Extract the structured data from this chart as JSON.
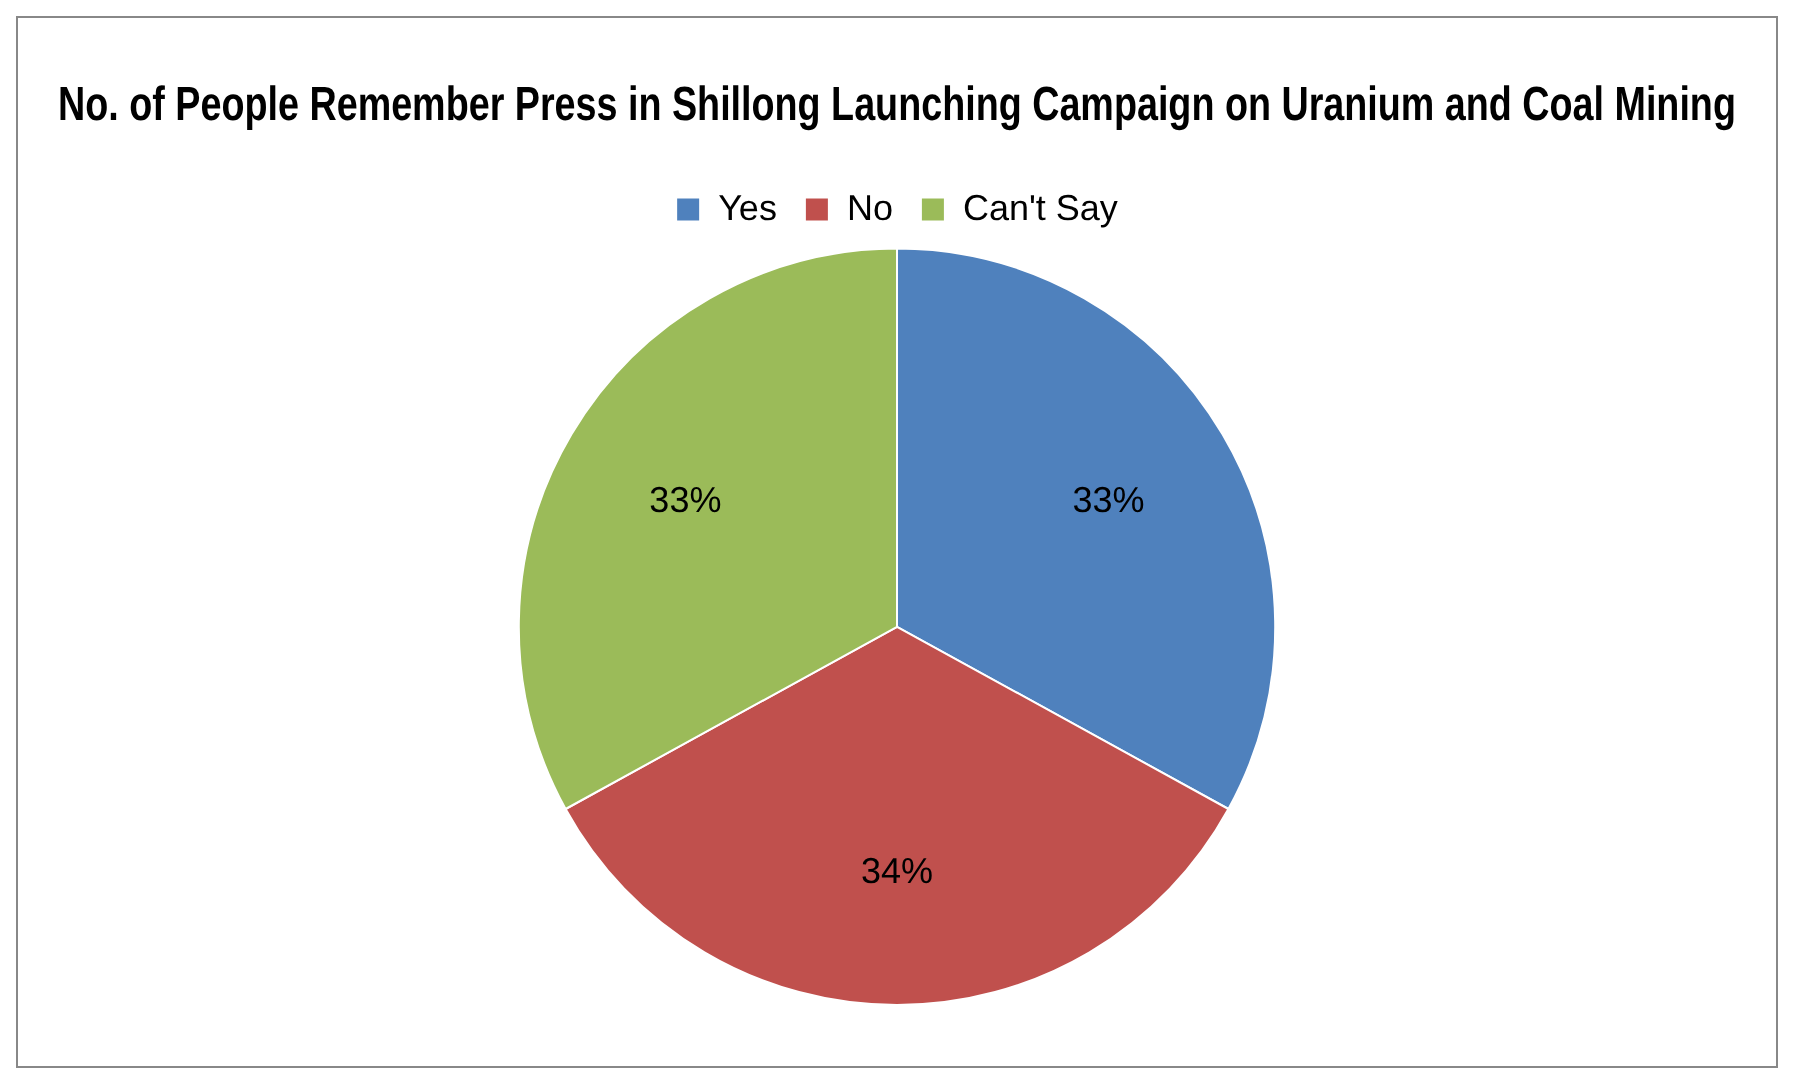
{
  "chart_data": {
    "type": "pie",
    "title": "No. of People Remember Press in Shillong Launching Campaign on Uranium and Coal Mining",
    "categories": [
      "Yes",
      "No",
      "Can't Say"
    ],
    "values": [
      33,
      34,
      33
    ],
    "colors": [
      "#4f81bd",
      "#c0504d",
      "#9bbb59"
    ],
    "value_labels": [
      "33%",
      "34%",
      "33%"
    ],
    "legend": "top"
  }
}
